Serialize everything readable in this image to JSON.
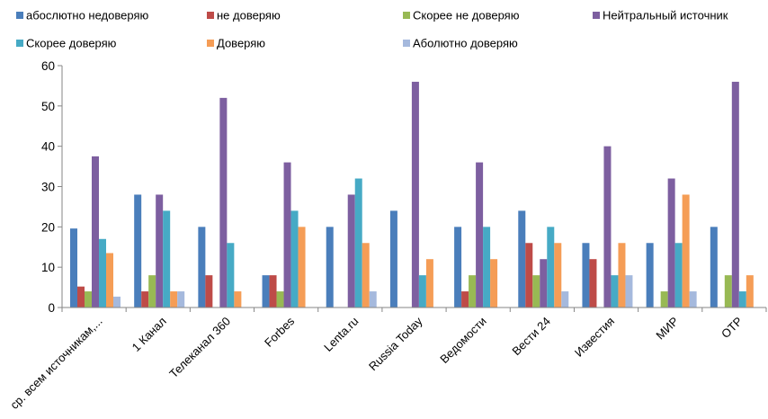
{
  "chart_data": {
    "type": "bar",
    "title": "",
    "xlabel": "",
    "ylabel": "",
    "ylim": [
      0,
      60
    ],
    "yticks": [
      0,
      10,
      20,
      30,
      40,
      50,
      60
    ],
    "grid": false,
    "legend_position": "top",
    "categories": [
      "ср. всем источникам,...",
      "1 Канал",
      "Телеканал 360",
      "Forbes",
      "Lenta.ru",
      "Russia Today",
      "Ведомости",
      "Вести 24",
      "Известия",
      "МИР",
      "OTP"
    ],
    "series": [
      {
        "name": "абослютно недоверяю",
        "color": "#4A7EBB",
        "values": [
          19.6,
          28,
          20,
          8,
          20,
          24,
          20,
          24,
          16,
          16,
          20
        ]
      },
      {
        "name": "не доверяю",
        "color": "#BE4B48",
        "values": [
          5.2,
          4,
          8,
          8,
          0,
          0,
          4,
          16,
          12,
          0,
          0
        ]
      },
      {
        "name": "Скорее не доверяю",
        "color": "#98B954",
        "values": [
          4,
          8,
          0,
          4,
          0,
          0,
          8,
          8,
          0,
          4,
          8
        ]
      },
      {
        "name": "Нейтральный источник",
        "color": "#7D5FA0",
        "values": [
          37.5,
          28,
          52,
          36,
          28,
          56,
          36,
          12,
          40,
          32,
          56
        ]
      },
      {
        "name": "Скорее доверяю",
        "color": "#46AAC5",
        "values": [
          17,
          24,
          16,
          24,
          32,
          8,
          20,
          20,
          8,
          16,
          4
        ]
      },
      {
        "name": "Доверяю",
        "color": "#F59D56",
        "values": [
          13.5,
          4,
          4,
          20,
          16,
          12,
          12,
          16,
          16,
          28,
          8
        ]
      },
      {
        "name": "Аболютно доверяю",
        "color": "#A5B9DD",
        "values": [
          2.7,
          4,
          0,
          0,
          4,
          0,
          0,
          4,
          8,
          4,
          0
        ]
      }
    ]
  }
}
